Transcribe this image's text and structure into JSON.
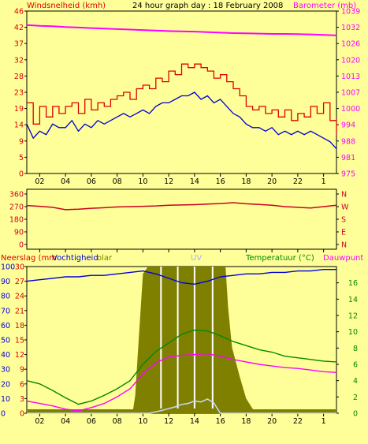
{
  "header": {
    "left_label": "Windsnelheid (kmh)",
    "title": "24 hour graph day : 18 February 2008",
    "right_label": "Barometer (mb)"
  },
  "panel3_labels": {
    "neerslag": "Neerslag (mm",
    "vochtigheid": "Vochtigheid",
    "solar": "olar",
    "uv": "UV",
    "temperatuur": "Temperatuur (°C)",
    "dauwpunt": "Dauwpunt"
  },
  "colors": {
    "background": "#ffff99",
    "wind_gust": "#dd0000",
    "wind_avg": "#0000cc",
    "barometer": "#ff00ff",
    "wind_direction": "#cc0022",
    "humidity": "#0000dd",
    "solar": "#808000",
    "uv": "#c8d8ff",
    "temperature": "#008800",
    "dewpoint": "#ff00ff"
  },
  "chart_data": [
    {
      "type": "line",
      "panel": "wind_barometer",
      "x_ticks": [
        "02",
        "04",
        "06",
        "08",
        "10",
        "12",
        "14",
        "16",
        "18",
        "20",
        "22",
        "1"
      ],
      "y_left_ticks": [
        "46",
        "42",
        "37",
        "32",
        "28",
        "23",
        "19",
        "14",
        "9",
        "5",
        "0"
      ],
      "y_left_lim": [
        0,
        46
      ],
      "y_right_ticks": [
        "1039",
        "1032",
        "1026",
        "1020",
        "1013",
        "1007",
        "1000",
        "994",
        "988",
        "981",
        "975"
      ],
      "y_right_lim": [
        975,
        1039
      ],
      "series": [
        {
          "key": "gust",
          "x": [
            0,
            0.5,
            1,
            1.5,
            2,
            2.5,
            3,
            3.5,
            4,
            4.5,
            5,
            5.5,
            6,
            6.5,
            7,
            7.5,
            8,
            8.5,
            9,
            9.5,
            10,
            10.5,
            11,
            11.5,
            12,
            12.5,
            13,
            13.5,
            14,
            14.5,
            15,
            15.5,
            16,
            16.5,
            17,
            17.5,
            18,
            18.5,
            19,
            19.5,
            20,
            20.5,
            21,
            21.5,
            22,
            22.5,
            23,
            23.5,
            24
          ],
          "values": [
            20,
            14,
            19,
            16,
            19,
            17,
            19,
            20,
            17,
            21,
            18,
            20,
            19,
            21,
            22,
            23,
            21,
            24,
            25,
            24,
            27,
            26,
            29,
            28,
            31,
            30,
            31,
            30,
            29,
            27,
            28,
            26,
            24,
            22,
            19,
            18,
            19,
            17,
            18,
            16,
            18,
            15,
            17,
            16,
            19,
            17,
            20,
            15,
            11
          ]
        },
        {
          "key": "avg",
          "x": [
            0,
            0.5,
            1,
            1.5,
            2,
            2.5,
            3,
            3.5,
            4,
            4.5,
            5,
            5.5,
            6,
            6.5,
            7,
            7.5,
            8,
            8.5,
            9,
            9.5,
            10,
            10.5,
            11,
            11.5,
            12,
            12.5,
            13,
            13.5,
            14,
            14.5,
            15,
            15.5,
            16,
            16.5,
            17,
            17.5,
            18,
            18.5,
            19,
            19.5,
            20,
            20.5,
            21,
            21.5,
            22,
            22.5,
            23,
            23.5,
            24
          ],
          "values": [
            14,
            10,
            12,
            11,
            14,
            13,
            13,
            15,
            12,
            14,
            13,
            15,
            14,
            15,
            16,
            17,
            16,
            17,
            18,
            17,
            19,
            20,
            20,
            21,
            22,
            22,
            23,
            21,
            22,
            20,
            21,
            19,
            17,
            16,
            14,
            13,
            13,
            12,
            13,
            11,
            12,
            11,
            12,
            11,
            12,
            11,
            10,
            9,
            7
          ]
        },
        {
          "key": "barometer",
          "x": [
            0,
            1,
            2,
            3,
            4,
            5,
            6,
            7,
            8,
            9,
            10,
            11,
            12,
            13,
            14,
            15,
            16,
            17,
            18,
            19,
            20,
            21,
            22,
            23,
            24
          ],
          "values": [
            1033.5,
            1033.2,
            1033.0,
            1032.7,
            1032.5,
            1032.3,
            1032.1,
            1031.9,
            1031.7,
            1031.5,
            1031.3,
            1031.1,
            1031.0,
            1030.9,
            1030.7,
            1030.5,
            1030.3,
            1030.2,
            1030.1,
            1030.0,
            1030.0,
            1029.9,
            1029.8,
            1029.6,
            1029.4
          ]
        }
      ]
    },
    {
      "type": "line",
      "panel": "wind_direction",
      "y_left_ticks": [
        "360",
        "270",
        "180",
        "90",
        "0"
      ],
      "y_lim": [
        0,
        360
      ],
      "y_right_ticks": [
        "N",
        "W",
        "S",
        "E",
        "N"
      ],
      "series": [
        {
          "key": "direction",
          "x": [
            0,
            1,
            2,
            3,
            4,
            5,
            6,
            7,
            8,
            9,
            10,
            11,
            12,
            13,
            14,
            15,
            16,
            17,
            18,
            19,
            20,
            21,
            22,
            23,
            24
          ],
          "values": [
            278,
            272,
            265,
            248,
            252,
            258,
            262,
            268,
            270,
            272,
            275,
            280,
            282,
            284,
            288,
            292,
            298,
            290,
            285,
            280,
            270,
            265,
            260,
            270,
            280
          ]
        }
      ]
    },
    {
      "type": "line",
      "panel": "rain_humidity_solar_temperature",
      "y_left_ticks": [
        [
          "100",
          "30"
        ],
        [
          "90",
          "27"
        ],
        [
          "80",
          "24"
        ],
        [
          "70",
          "21"
        ],
        [
          "60",
          "18"
        ],
        [
          "50",
          "15"
        ],
        [
          "40",
          "12"
        ],
        [
          "30",
          "9"
        ],
        [
          "20",
          "6"
        ],
        [
          "10",
          "3"
        ],
        [
          "0",
          "0"
        ]
      ],
      "y_right_ticks": [
        "16",
        "14",
        "12",
        "10",
        "8",
        "6",
        "4",
        "2",
        "0"
      ],
      "y_right_lim": [
        0,
        18
      ],
      "series": [
        {
          "key": "humidity",
          "x": [
            0,
            1,
            2,
            3,
            4,
            5,
            6,
            7,
            8,
            9,
            10,
            11,
            12,
            13,
            14,
            15,
            16,
            17,
            18,
            19,
            20,
            21,
            22,
            23,
            24
          ],
          "values": [
            90,
            91,
            92,
            93,
            93,
            94,
            94,
            95,
            96,
            97,
            95,
            92,
            89,
            88,
            90,
            93,
            94,
            95,
            95,
            96,
            96,
            97,
            97,
            98,
            98
          ]
        },
        {
          "key": "solar",
          "x": [
            0,
            7.2,
            8.2,
            8.4,
            8.6,
            9.0,
            9.4,
            10,
            10.8,
            11.6,
            12.4,
            13.2,
            14.0,
            14.8,
            15.4,
            15.6,
            15.9,
            16.5,
            17.0,
            17.5,
            18,
            24
          ],
          "values": [
            0,
            0,
            0.5,
            12,
            40,
            95,
            100,
            100,
            100,
            100,
            100,
            100,
            100,
            100,
            100,
            72,
            45,
            25,
            10,
            3,
            0,
            0
          ]
        },
        {
          "key": "uv",
          "x": [
            0,
            9.5,
            10.5,
            11.5,
            12,
            12.5,
            13,
            13.5,
            14,
            14.5,
            15,
            24
          ],
          "values": [
            0,
            0,
            0.6,
            1.3,
            1.8,
            2.0,
            2.5,
            2.3,
            2.9,
            2.1,
            0,
            0
          ]
        },
        {
          "key": "temperature",
          "x": [
            0,
            1,
            2,
            3,
            4,
            5,
            6,
            7,
            8,
            9,
            10,
            11,
            12,
            13,
            14,
            15,
            16,
            17,
            18,
            19,
            20,
            21,
            22,
            23,
            24
          ],
          "values": [
            4.0,
            3.6,
            2.8,
            1.9,
            1.1,
            1.5,
            2.2,
            3.0,
            4.0,
            6.0,
            7.6,
            8.6,
            9.7,
            10.2,
            10.1,
            9.5,
            8.8,
            8.3,
            7.8,
            7.5,
            7.0,
            6.8,
            6.6,
            6.4,
            6.3
          ]
        },
        {
          "key": "dewpoint",
          "x": [
            0,
            1,
            2,
            3,
            4,
            5,
            6,
            7,
            8,
            9,
            10,
            11,
            12,
            13,
            14,
            15,
            16,
            17,
            18,
            19,
            20,
            21,
            22,
            23,
            24
          ],
          "values": [
            1.5,
            1.2,
            0.9,
            0.5,
            0.3,
            0.7,
            1.2,
            2.0,
            3.0,
            4.8,
            6.2,
            6.9,
            7.1,
            7.2,
            7.3,
            7.0,
            6.6,
            6.3,
            6.0,
            5.8,
            5.6,
            5.5,
            5.3,
            5.1,
            5.0
          ]
        }
      ]
    }
  ]
}
